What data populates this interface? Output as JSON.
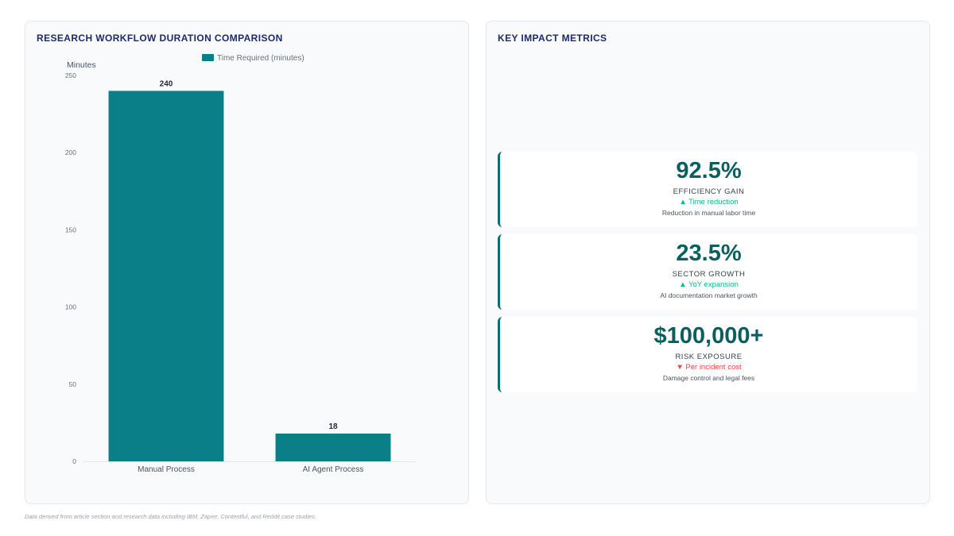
{
  "left_panel": {
    "title": "RESEARCH WORKFLOW DURATION COMPARISON"
  },
  "right_panel": {
    "title": "KEY IMPACT METRICS"
  },
  "chart_data": {
    "type": "bar",
    "categories": [
      "Manual Process",
      "AI Agent Process"
    ],
    "series": [
      {
        "name": "Time Required (minutes)",
        "values": [
          240,
          18
        ],
        "color": "#0b7f87"
      }
    ],
    "ylabel": "Minutes",
    "xlabel": "",
    "ylim": [
      0,
      250
    ],
    "yticks": [
      0,
      50,
      100,
      150,
      200,
      250
    ],
    "data_labels": [
      "240",
      "18"
    ],
    "legend": "top-center",
    "grid": false
  },
  "metrics": [
    {
      "value": "92.5%",
      "label": "EFFICIENCY GAIN",
      "trend": "▲ Time reduction",
      "direction": "up",
      "description": "Reduction in manual labor time"
    },
    {
      "value": "23.5%",
      "label": "SECTOR GROWTH",
      "trend": "▲ YoY expansion",
      "direction": "up",
      "description": "AI documentation market growth"
    },
    {
      "value": "$100,000+",
      "label": "RISK EXPOSURE",
      "trend": "▼ Per incident cost",
      "direction": "down",
      "description": "Damage control and legal fees"
    }
  ],
  "footnote": "Data derived from article section and research data including IBM, Zapier, Contentful, and Reddit case studies.",
  "colors": {
    "accent": "#0b7f87",
    "title": "#1e2a6b",
    "trend_up": "#10b981",
    "trend_down": "#ef4444"
  }
}
